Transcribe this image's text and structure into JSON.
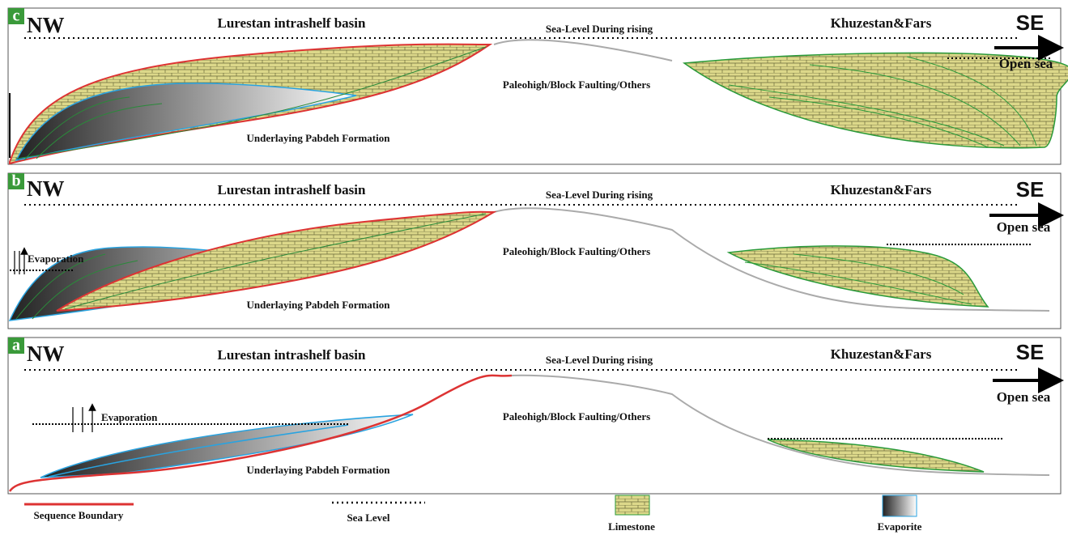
{
  "panels": [
    {
      "letter": "c",
      "nw": "NW",
      "basin": "Lurestan intrashelf basin",
      "sea_level": "Sea-Level During rising",
      "region": "Khuzestan&Fars",
      "se": "SE",
      "open_sea": "Open sea",
      "paleohigh": "Paleohigh/Block Faulting/Others",
      "underlying": "Underlaying Pabdeh Formation"
    },
    {
      "letter": "b",
      "nw": "NW",
      "basin": "Lurestan intrashelf basin",
      "sea_level": "Sea-Level During rising",
      "region": "Khuzestan&Fars",
      "se": "SE",
      "open_sea": "Open sea",
      "paleohigh": "Paleohigh/Block Faulting/Others",
      "underlying": "Underlaying Pabdeh Formation",
      "evaporation": "Evaporation"
    },
    {
      "letter": "a",
      "nw": "NW",
      "basin": "Lurestan intrashelf basin",
      "sea_level": "Sea-Level During rising",
      "region": "Khuzestan&Fars",
      "se": "SE",
      "open_sea": "Open sea",
      "paleohigh": "Paleohigh/Block Faulting/Others",
      "underlying": "Underlaying Pabdeh Formation",
      "evaporation": "Evaporation"
    }
  ],
  "legend": {
    "sequence_boundary": "Sequence Boundary",
    "sea_level": "Sea Level",
    "limestone": "Limestone",
    "evaporite": "Evaporite"
  }
}
